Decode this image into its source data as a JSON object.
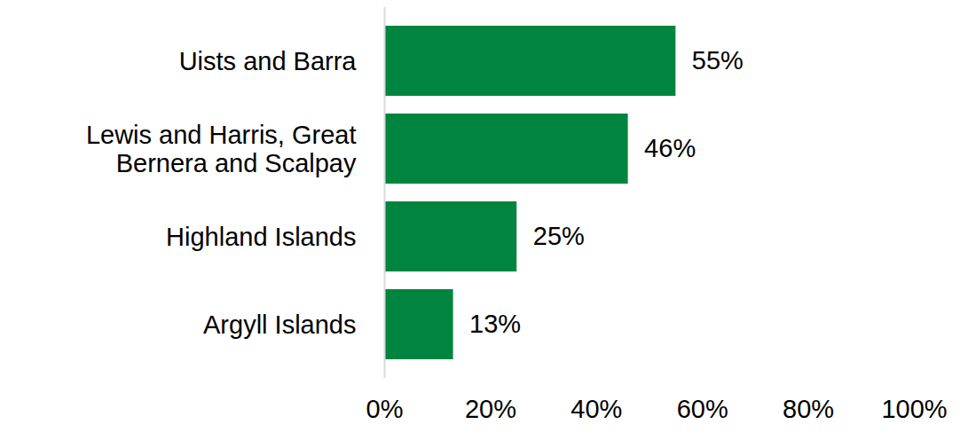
{
  "chart_data": {
    "type": "bar",
    "orientation": "horizontal",
    "categories": [
      "Uists and Barra",
      "Lewis and Harris, Great Bernera and Scalpay",
      "Highland Islands",
      "Argyll Islands"
    ],
    "values": [
      55,
      46,
      25,
      13
    ],
    "value_labels": [
      "55%",
      "46%",
      "25%",
      "13%"
    ],
    "color": "#008540",
    "xlim": [
      0,
      100
    ],
    "xticks": [
      {
        "value": 0,
        "label": "0%"
      },
      {
        "value": 20,
        "label": "20%"
      },
      {
        "value": 40,
        "label": "40%"
      },
      {
        "value": 60,
        "label": "60%"
      },
      {
        "value": 80,
        "label": "80%"
      },
      {
        "value": 100,
        "label": "100%"
      }
    ],
    "data_labels": true,
    "grid": false
  }
}
